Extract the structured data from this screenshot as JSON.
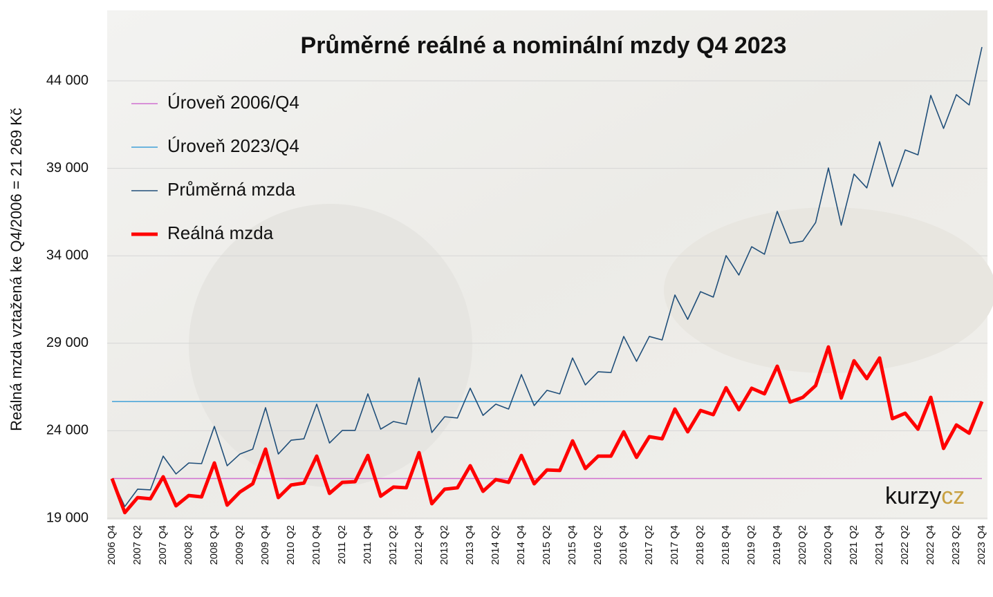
{
  "chart_data": {
    "type": "line",
    "title": "Průměrné reálné a nominální mzdy Q4 2023",
    "y_label": "Reálná mzda vztažená ke Q4/2006 = 21 269 Kč",
    "watermark": "kurzy",
    "watermark_accent": "cz",
    "categories": [
      "2006 Q4",
      null,
      "2007 Q2",
      null,
      "2007 Q4",
      null,
      "2008 Q2",
      null,
      "2008 Q4",
      null,
      "2009 Q2",
      null,
      "2009 Q4",
      null,
      "2010 Q2",
      null,
      "2010 Q4",
      null,
      "2011 Q2",
      null,
      "2011 Q4",
      null,
      "2012 Q2",
      null,
      "2012 Q4",
      null,
      "2013 Q2",
      null,
      "2013 Q4",
      null,
      "2014 Q2",
      null,
      "2014 Q4",
      null,
      "2015 Q2",
      null,
      "2015 Q4",
      null,
      "2016 Q2",
      null,
      "2016 Q4",
      null,
      "2017 Q2",
      null,
      "2017 Q4",
      null,
      "2018 Q2",
      null,
      "2018 Q4",
      null,
      "2019 Q2",
      null,
      "2019 Q4",
      null,
      "2020 Q2",
      null,
      "2020 Q4",
      null,
      "2021 Q2",
      null,
      "2021 Q4",
      null,
      "2022 Q2",
      null,
      "2022 Q4",
      null,
      "2023 Q2",
      null,
      "2023 Q4"
    ],
    "reference_lines": [
      {
        "name": "Úroveň 2006/Q4",
        "color": "#d070d0",
        "value": 21269
      },
      {
        "name": "Úroveň 2023/Q4",
        "color": "#3fa0d8",
        "value": 25670
      }
    ],
    "series": [
      {
        "name": "Průměrná mzda",
        "color": "#1f4e79",
        "width": 1.6,
        "values": [
          21269,
          19670,
          20660,
          20620,
          22550,
          21530,
          22160,
          22120,
          24250,
          22000,
          22670,
          22950,
          25320,
          22670,
          23460,
          23540,
          25520,
          23300,
          24020,
          24020,
          26110,
          24090,
          24530,
          24370,
          27020,
          23900,
          24800,
          24730,
          26430,
          24880,
          25520,
          25240,
          27210,
          25440,
          26310,
          26110,
          28160,
          26620,
          27370,
          27330,
          29390,
          27970,
          29390,
          29190,
          31760,
          30370,
          31950,
          31640,
          34010,
          32900,
          34520,
          34090,
          36540,
          34720,
          34840,
          35900,
          39020,
          35750,
          38670,
          37880,
          40520,
          37960,
          40050,
          39770,
          43170,
          41280,
          43210,
          42620,
          45930
        ]
      },
      {
        "name": "Reálná mzda",
        "color": "#ff0000",
        "width": 5,
        "values": [
          21269,
          19320,
          20180,
          20110,
          21370,
          19710,
          20300,
          20220,
          22160,
          19750,
          20500,
          20970,
          22950,
          20180,
          20900,
          21010,
          22550,
          20420,
          21050,
          21090,
          22590,
          20260,
          20780,
          20740,
          22750,
          19830,
          20660,
          20740,
          22000,
          20540,
          21210,
          21050,
          22590,
          20970,
          21760,
          21730,
          23420,
          21840,
          22550,
          22550,
          23940,
          22480,
          23660,
          23540,
          25240,
          23940,
          25160,
          24920,
          26460,
          25200,
          26430,
          26110,
          27690,
          25640,
          25910,
          26580,
          28790,
          25870,
          28000,
          26980,
          28160,
          24690,
          25000,
          24090,
          25910,
          22990,
          24330,
          23860,
          25670
        ]
      }
    ],
    "ylim": [
      19000,
      48000
    ],
    "yticks": [
      {
        "value": 19000,
        "label": "19 000"
      },
      {
        "value": 24000,
        "label": "24 000"
      },
      {
        "value": 29000,
        "label": "29 000"
      },
      {
        "value": 34000,
        "label": "34 000"
      },
      {
        "value": 39000,
        "label": "39 000"
      },
      {
        "value": 44000,
        "label": "44 000"
      }
    ],
    "grid": true
  }
}
